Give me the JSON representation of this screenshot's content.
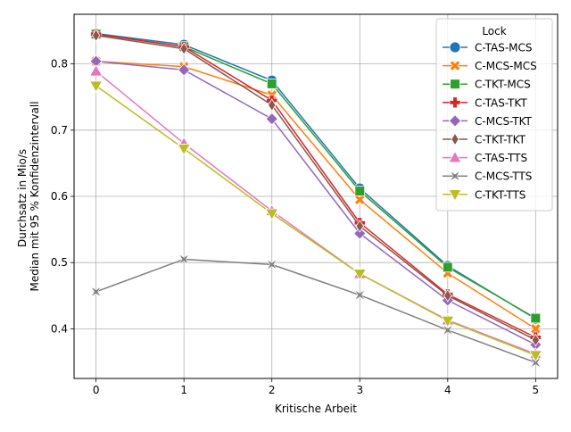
{
  "chart_data": {
    "type": "line",
    "title": "",
    "xlabel": "Kritische Arbeit",
    "ylabel_lines": [
      "Durchsatz in Mio/s",
      "Median mit 95 % Konfidenzintervall"
    ],
    "x": [
      0,
      1,
      2,
      3,
      4,
      5
    ],
    "xlim": [
      -0.25,
      5.25
    ],
    "ylim": [
      0.325,
      0.875
    ],
    "xticks": [
      0,
      1,
      2,
      3,
      4,
      5
    ],
    "yticks": [
      0.4,
      0.5,
      0.6,
      0.7,
      0.8
    ],
    "ytick_labels": [
      "0.4",
      "0.5",
      "0.6",
      "0.7",
      "0.8"
    ],
    "grid": true,
    "legend": {
      "title": "Lock",
      "placement": "top-right"
    },
    "series": [
      {
        "name": "C-TAS-MCS",
        "color": "#1f77b4",
        "marker": "circle",
        "values": [
          0.846,
          0.829,
          0.775,
          0.612,
          0.495,
          0.415
        ]
      },
      {
        "name": "C-MCS-MCS",
        "color": "#ff7f0e",
        "marker": "x",
        "values": [
          0.804,
          0.796,
          0.753,
          0.595,
          0.484,
          0.4
        ]
      },
      {
        "name": "C-TKT-MCS",
        "color": "#2ca02c",
        "marker": "square",
        "values": [
          0.845,
          0.826,
          0.77,
          0.608,
          0.493,
          0.416
        ]
      },
      {
        "name": "C-TAS-TKT",
        "color": "#d62728",
        "marker": "plus",
        "values": [
          0.845,
          0.826,
          0.745,
          0.56,
          0.452,
          0.387
        ]
      },
      {
        "name": "C-MCS-TKT",
        "color": "#9467bd",
        "marker": "diamond",
        "values": [
          0.804,
          0.791,
          0.717,
          0.544,
          0.443,
          0.376
        ]
      },
      {
        "name": "C-TKT-TKT",
        "color": "#8c564b",
        "marker": "thin_diamond",
        "values": [
          0.843,
          0.823,
          0.738,
          0.555,
          0.45,
          0.383
        ]
      },
      {
        "name": "C-TAS-TTS",
        "color": "#e377c2",
        "marker": "triangle_up",
        "values": [
          0.789,
          0.68,
          0.578,
          0.483,
          0.413,
          0.362
        ]
      },
      {
        "name": "C-MCS-TTS",
        "color": "#7f7f7f",
        "marker": "star4",
        "values": [
          0.456,
          0.505,
          0.497,
          0.451,
          0.398,
          0.349
        ]
      },
      {
        "name": "C-TKT-TTS",
        "color": "#bcbd22",
        "marker": "triangle_down",
        "values": [
          0.767,
          0.672,
          0.574,
          0.483,
          0.412,
          0.36
        ]
      }
    ]
  }
}
